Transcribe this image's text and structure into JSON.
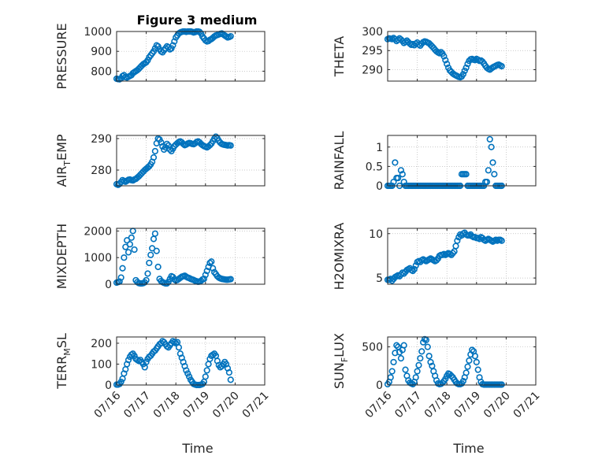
{
  "title": "Figure 3 medium",
  "marker_color": "#0072BD",
  "x_tick_labels": [
    "07/16",
    "07/17",
    "07/18",
    "07/19",
    "07/20",
    "07/21"
  ],
  "x_axis_label": "Time",
  "chart_data": [
    {
      "type": "scatter",
      "ylabel": "PRESSURE",
      "grid": true,
      "xlim": [
        0,
        5
      ],
      "ylim": [
        750,
        1000
      ],
      "yticks": [
        800,
        900,
        1000
      ],
      "x": [
        0.0,
        0.05,
        0.1,
        0.15,
        0.2,
        0.25,
        0.3,
        0.35,
        0.4,
        0.45,
        0.5,
        0.55,
        0.6,
        0.65,
        0.7,
        0.75,
        0.8,
        0.85,
        0.9,
        0.95,
        1.0,
        1.05,
        1.1,
        1.15,
        1.2,
        1.25,
        1.3,
        1.35,
        1.4,
        1.45,
        1.5,
        1.55,
        1.6,
        1.65,
        1.7,
        1.75,
        1.8,
        1.85,
        1.9,
        1.95,
        2.0,
        2.05,
        2.1,
        2.15,
        2.2,
        2.25,
        2.3,
        2.35,
        2.4,
        2.45,
        2.5,
        2.55,
        2.6,
        2.65,
        2.7,
        2.75,
        2.8,
        2.85,
        2.9,
        2.95,
        3.0,
        3.05,
        3.1,
        3.15,
        3.2,
        3.25,
        3.3,
        3.35,
        3.4,
        3.45,
        3.5,
        3.55,
        3.6,
        3.65,
        3.7,
        3.75,
        3.8,
        3.85
      ],
      "y": [
        762,
        760,
        759,
        764,
        775,
        780,
        770,
        768,
        772,
        776,
        780,
        790,
        795,
        800,
        805,
        812,
        820,
        828,
        835,
        840,
        845,
        855,
        870,
        880,
        890,
        900,
        915,
        930,
        925,
        910,
        900,
        895,
        905,
        915,
        925,
        920,
        910,
        915,
        930,
        950,
        970,
        980,
        990,
        995,
        998,
        1000,
        1000,
        998,
        1000,
        1000,
        1000,
        998,
        995,
        997,
        1000,
        1000,
        998,
        990,
        975,
        965,
        955,
        950,
        952,
        958,
        962,
        968,
        975,
        980,
        982,
        985,
        988,
        990,
        985,
        980,
        975,
        970,
        972,
        976
      ]
    },
    {
      "type": "scatter",
      "ylabel": "THETA",
      "grid": true,
      "xlim": [
        0,
        5
      ],
      "ylim": [
        287,
        300
      ],
      "yticks": [
        290,
        295,
        300
      ],
      "x": [
        0.0,
        0.05,
        0.1,
        0.15,
        0.2,
        0.25,
        0.3,
        0.35,
        0.4,
        0.45,
        0.5,
        0.55,
        0.6,
        0.65,
        0.7,
        0.75,
        0.8,
        0.85,
        0.9,
        0.95,
        1.0,
        1.05,
        1.1,
        1.15,
        1.2,
        1.25,
        1.3,
        1.35,
        1.4,
        1.45,
        1.5,
        1.55,
        1.6,
        1.65,
        1.7,
        1.75,
        1.8,
        1.85,
        1.9,
        1.95,
        2.0,
        2.05,
        2.1,
        2.15,
        2.2,
        2.25,
        2.3,
        2.35,
        2.4,
        2.45,
        2.5,
        2.55,
        2.6,
        2.65,
        2.7,
        2.75,
        2.8,
        2.85,
        2.9,
        2.95,
        3.0,
        3.05,
        3.1,
        3.15,
        3.2,
        3.25,
        3.3,
        3.35,
        3.4,
        3.45,
        3.5,
        3.55,
        3.6,
        3.65,
        3.7,
        3.75,
        3.8,
        3.85
      ],
      "y": [
        298,
        298.2,
        298.1,
        298,
        298.3,
        298,
        297.5,
        297.8,
        298.2,
        297.9,
        297.5,
        297,
        297.3,
        297.6,
        297.2,
        296.8,
        296.5,
        296.7,
        296.4,
        296.8,
        297.1,
        296.6,
        296.3,
        296.8,
        297.2,
        297.4,
        297.3,
        297.1,
        296.9,
        296.5,
        296.1,
        295.7,
        295.2,
        294.8,
        294.5,
        294.3,
        294.6,
        294.2,
        293.5,
        292.5,
        291.5,
        290.5,
        289.8,
        289.4,
        289,
        288.7,
        288.5,
        288.3,
        288.1,
        288,
        288.2,
        288.8,
        289.7,
        290.5,
        291.5,
        292.3,
        292.7,
        292.8,
        292.6,
        292.5,
        292.8,
        292.6,
        292.3,
        292.4,
        292.1,
        291.6,
        291,
        290.5,
        290.2,
        290,
        290.3,
        290.6,
        290.8,
        291,
        291.2,
        291.3,
        291.1,
        290.9
      ]
    },
    {
      "type": "scatter",
      "ylabel": "AIR_TEMP",
      "ylabel_parts": [
        "AIR",
        "T",
        "EMP"
      ],
      "grid": true,
      "xlim": [
        0,
        5
      ],
      "ylim": [
        275,
        291
      ],
      "yticks": [
        280,
        290
      ],
      "x": [
        0.0,
        0.05,
        0.1,
        0.15,
        0.2,
        0.25,
        0.3,
        0.35,
        0.4,
        0.45,
        0.5,
        0.55,
        0.6,
        0.65,
        0.7,
        0.75,
        0.8,
        0.85,
        0.9,
        0.95,
        1.0,
        1.05,
        1.1,
        1.15,
        1.2,
        1.25,
        1.3,
        1.35,
        1.4,
        1.45,
        1.5,
        1.55,
        1.6,
        1.65,
        1.7,
        1.75,
        1.8,
        1.85,
        1.9,
        1.95,
        2.0,
        2.05,
        2.1,
        2.15,
        2.2,
        2.25,
        2.3,
        2.35,
        2.4,
        2.45,
        2.5,
        2.55,
        2.6,
        2.65,
        2.7,
        2.75,
        2.8,
        2.85,
        2.9,
        2.95,
        3.0,
        3.05,
        3.1,
        3.15,
        3.2,
        3.25,
        3.3,
        3.35,
        3.4,
        3.45,
        3.5,
        3.55,
        3.6,
        3.65,
        3.7,
        3.75,
        3.8,
        3.85
      ],
      "y": [
        275.5,
        275.3,
        275.6,
        276.2,
        276.8,
        276.5,
        276.3,
        276.6,
        276.9,
        277.0,
        276.8,
        276.7,
        277.0,
        277.2,
        277.6,
        278.0,
        278.5,
        279.0,
        279.5,
        280.0,
        280.4,
        280.8,
        281.2,
        281.8,
        282.6,
        284,
        286,
        288.5,
        290,
        289.7,
        288.8,
        287.5,
        286.5,
        287.2,
        288.3,
        287.8,
        286.5,
        286,
        286.8,
        287.6,
        288.1,
        288.5,
        288.9,
        289.1,
        288.8,
        288.3,
        287.9,
        288.1,
        288.4,
        288.6,
        288.5,
        288.3,
        288.2,
        288.5,
        288.9,
        289.1,
        288.8,
        288.3,
        287.9,
        287.6,
        287.4,
        287.2,
        287.5,
        287.9,
        288.4,
        289.2,
        290,
        290.6,
        290.1,
        289.3,
        288.7,
        288.3,
        288.1,
        288,
        287.9,
        287.8,
        287.9,
        287.8
      ]
    },
    {
      "type": "scatter",
      "ylabel": "RAINFALL",
      "grid": true,
      "xlim": [
        0,
        5
      ],
      "ylim": [
        0,
        1.3
      ],
      "yticks": [
        0,
        0.5,
        1
      ],
      "x": [
        0.0,
        0.05,
        0.1,
        0.15,
        0.2,
        0.25,
        0.3,
        0.35,
        0.4,
        0.45,
        0.5,
        0.55,
        0.6,
        0.65,
        0.7,
        0.75,
        0.8,
        0.85,
        0.9,
        0.95,
        1.0,
        1.05,
        1.1,
        1.15,
        1.2,
        1.25,
        1.3,
        1.35,
        1.4,
        1.45,
        1.5,
        1.55,
        1.6,
        1.65,
        1.7,
        1.75,
        1.8,
        1.85,
        1.9,
        1.95,
        2.0,
        2.05,
        2.1,
        2.15,
        2.2,
        2.25,
        2.3,
        2.35,
        2.4,
        2.45,
        2.5,
        2.55,
        2.6,
        2.65,
        2.7,
        2.75,
        2.8,
        2.85,
        2.9,
        2.95,
        3.0,
        3.05,
        3.1,
        3.15,
        3.2,
        3.25,
        3.3,
        3.35,
        3.4,
        3.45,
        3.5,
        3.55,
        3.6,
        3.65,
        3.7,
        3.75,
        3.8,
        3.85
      ],
      "y": [
        0,
        0,
        0,
        0,
        0.1,
        0.6,
        0.2,
        0.2,
        0,
        0.4,
        0.3,
        0.1,
        0,
        0,
        0,
        0,
        0,
        0,
        0,
        0,
        0,
        0,
        0,
        0,
        0,
        0,
        0,
        0,
        0,
        0,
        0,
        0,
        0,
        0,
        0,
        0,
        0,
        0,
        0,
        0,
        0,
        0,
        0,
        0,
        0,
        0,
        0,
        0,
        0,
        0,
        0.3,
        0.3,
        0.3,
        0.3,
        0,
        0,
        0,
        0,
        0,
        0,
        0,
        0,
        0,
        0,
        0,
        0,
        0.1,
        0.1,
        0.4,
        1.2,
        1.0,
        0.6,
        0.3,
        0,
        0,
        0,
        0,
        0
      ]
    },
    {
      "type": "scatter",
      "ylabel": "MIXDEPTH",
      "grid": true,
      "xlim": [
        0,
        5
      ],
      "ylim": [
        0,
        2100
      ],
      "yticks": [
        0,
        1000,
        2000
      ],
      "x": [
        0.0,
        0.05,
        0.1,
        0.15,
        0.2,
        0.25,
        0.3,
        0.35,
        0.4,
        0.45,
        0.5,
        0.55,
        0.6,
        0.65,
        0.7,
        0.75,
        0.8,
        0.85,
        0.9,
        0.95,
        1.0,
        1.05,
        1.1,
        1.15,
        1.2,
        1.25,
        1.3,
        1.35,
        1.4,
        1.45,
        1.5,
        1.55,
        1.6,
        1.65,
        1.7,
        1.75,
        1.8,
        1.85,
        1.9,
        1.95,
        2.0,
        2.05,
        2.1,
        2.15,
        2.2,
        2.25,
        2.3,
        2.35,
        2.4,
        2.45,
        2.5,
        2.55,
        2.6,
        2.65,
        2.7,
        2.75,
        2.8,
        2.85,
        2.9,
        2.95,
        3.0,
        3.05,
        3.1,
        3.15,
        3.2,
        3.25,
        3.3,
        3.35,
        3.4,
        3.45,
        3.5,
        3.55,
        3.6,
        3.65,
        3.7,
        3.75,
        3.8,
        3.85
      ],
      "y": [
        60,
        80,
        100,
        250,
        600,
        1000,
        1400,
        1650,
        1200,
        1500,
        1750,
        2000,
        1300,
        150,
        80,
        40,
        30,
        30,
        40,
        70,
        150,
        400,
        800,
        1100,
        1350,
        1700,
        1900,
        1250,
        650,
        200,
        120,
        80,
        50,
        30,
        30,
        90,
        200,
        300,
        270,
        180,
        140,
        160,
        200,
        240,
        280,
        300,
        320,
        280,
        250,
        230,
        200,
        180,
        160,
        130,
        110,
        90,
        100,
        130,
        180,
        200,
        350,
        500,
        650,
        800,
        850,
        600,
        450,
        380,
        300,
        250,
        220,
        200,
        190,
        180,
        170,
        170,
        180,
        190
      ]
    },
    {
      "type": "scatter",
      "ylabel": "H2OMIXRA",
      "grid": true,
      "xlim": [
        0,
        5
      ],
      "ylim": [
        4.3,
        10.6
      ],
      "yticks": [
        5,
        10
      ],
      "x": [
        0.0,
        0.05,
        0.1,
        0.15,
        0.2,
        0.25,
        0.3,
        0.35,
        0.4,
        0.45,
        0.5,
        0.55,
        0.6,
        0.65,
        0.7,
        0.75,
        0.8,
        0.85,
        0.9,
        0.95,
        1.0,
        1.05,
        1.1,
        1.15,
        1.2,
        1.25,
        1.3,
        1.35,
        1.4,
        1.45,
        1.5,
        1.55,
        1.6,
        1.65,
        1.7,
        1.75,
        1.8,
        1.85,
        1.9,
        1.95,
        2.0,
        2.05,
        2.1,
        2.15,
        2.2,
        2.25,
        2.3,
        2.35,
        2.4,
        2.45,
        2.5,
        2.55,
        2.6,
        2.65,
        2.7,
        2.75,
        2.8,
        2.85,
        2.9,
        2.95,
        3.0,
        3.05,
        3.1,
        3.15,
        3.2,
        3.25,
        3.3,
        3.35,
        3.4,
        3.45,
        3.5,
        3.55,
        3.6,
        3.65,
        3.7,
        3.75,
        3.8,
        3.85
      ],
      "y": [
        4.8,
        4.8,
        4.9,
        4.7,
        4.9,
        5.1,
        5.2,
        5.3,
        5.2,
        5.4,
        5.6,
        5.5,
        5.7,
        5.9,
        6.0,
        6.1,
        5.9,
        5.8,
        6.0,
        6.4,
        6.8,
        6.9,
        6.8,
        7.0,
        7.1,
        7.0,
        6.9,
        7.0,
        7.1,
        7.2,
        7.1,
        7.0,
        6.9,
        7.0,
        7.2,
        7.5,
        7.6,
        7.6,
        7.7,
        7.6,
        7.7,
        7.8,
        7.7,
        7.6,
        7.8,
        8.0,
        8.6,
        9.2,
        9.6,
        9.9,
        9.8,
        10.0,
        10.1,
        9.9,
        9.8,
        9.8,
        9.9,
        9.7,
        9.6,
        9.6,
        9.5,
        9.5,
        9.4,
        9.6,
        9.5,
        9.3,
        9.2,
        9.3,
        9.4,
        9.3,
        9.2,
        9.1,
        9.2,
        9.3,
        9.2,
        9.3,
        9.3,
        9.2
      ]
    },
    {
      "type": "scatter",
      "ylabel": "TERR_MSL",
      "ylabel_parts": [
        "TERR",
        "M",
        "SL"
      ],
      "grid": true,
      "xlim": [
        0,
        5
      ],
      "ylim": [
        0,
        230
      ],
      "yticks": [
        0,
        100,
        200
      ],
      "x": [
        0.0,
        0.05,
        0.1,
        0.15,
        0.2,
        0.25,
        0.3,
        0.35,
        0.4,
        0.45,
        0.5,
        0.55,
        0.6,
        0.65,
        0.7,
        0.75,
        0.8,
        0.85,
        0.9,
        0.95,
        1.0,
        1.05,
        1.1,
        1.15,
        1.2,
        1.25,
        1.3,
        1.35,
        1.4,
        1.45,
        1.5,
        1.55,
        1.6,
        1.65,
        1.7,
        1.75,
        1.8,
        1.85,
        1.9,
        1.95,
        2.0,
        2.05,
        2.1,
        2.15,
        2.2,
        2.25,
        2.3,
        2.35,
        2.4,
        2.45,
        2.5,
        2.55,
        2.6,
        2.65,
        2.7,
        2.75,
        2.8,
        2.85,
        2.9,
        2.95,
        3.0,
        3.05,
        3.1,
        3.15,
        3.2,
        3.25,
        3.3,
        3.35,
        3.4,
        3.45,
        3.5,
        3.55,
        3.6,
        3.65,
        3.7,
        3.75,
        3.8,
        3.85
      ],
      "y": [
        2,
        2,
        5,
        15,
        30,
        55,
        75,
        100,
        120,
        135,
        145,
        150,
        140,
        125,
        120,
        115,
        120,
        110,
        100,
        85,
        110,
        125,
        135,
        140,
        150,
        160,
        165,
        175,
        185,
        195,
        200,
        210,
        205,
        195,
        185,
        180,
        190,
        200,
        210,
        205,
        200,
        205,
        180,
        150,
        130,
        110,
        90,
        70,
        55,
        40,
        25,
        15,
        5,
        2,
        0,
        0,
        0,
        2,
        5,
        15,
        40,
        70,
        100,
        125,
        140,
        145,
        150,
        140,
        115,
        95,
        85,
        90,
        100,
        110,
        100,
        80,
        60,
        25
      ]
    },
    {
      "type": "scatter",
      "ylabel": "SUN_FLUX",
      "ylabel_parts": [
        "SUN",
        "F",
        "LUX"
      ],
      "grid": true,
      "xlim": [
        0,
        5
      ],
      "ylim": [
        0,
        630
      ],
      "yticks": [
        0,
        500
      ],
      "x": [
        0.0,
        0.05,
        0.1,
        0.15,
        0.2,
        0.25,
        0.3,
        0.35,
        0.4,
        0.45,
        0.5,
        0.55,
        0.6,
        0.65,
        0.7,
        0.75,
        0.8,
        0.85,
        0.9,
        0.95,
        1.0,
        1.05,
        1.1,
        1.15,
        1.2,
        1.25,
        1.3,
        1.35,
        1.4,
        1.45,
        1.5,
        1.55,
        1.6,
        1.65,
        1.7,
        1.75,
        1.8,
        1.85,
        1.9,
        1.95,
        2.0,
        2.05,
        2.1,
        2.15,
        2.2,
        2.25,
        2.3,
        2.35,
        2.4,
        2.45,
        2.5,
        2.55,
        2.6,
        2.65,
        2.7,
        2.75,
        2.8,
        2.85,
        2.9,
        2.95,
        3.0,
        3.05,
        3.1,
        3.15,
        3.2,
        3.25,
        3.3,
        3.35,
        3.4,
        3.45,
        3.5,
        3.55,
        3.6,
        3.65,
        3.7,
        3.75,
        3.8,
        3.85
      ],
      "y": [
        10,
        40,
        100,
        180,
        300,
        420,
        520,
        500,
        430,
        350,
        460,
        520,
        200,
        120,
        60,
        30,
        20,
        10,
        40,
        100,
        180,
        260,
        350,
        440,
        560,
        600,
        590,
        500,
        380,
        300,
        250,
        180,
        120,
        60,
        20,
        10,
        15,
        30,
        50,
        80,
        120,
        150,
        140,
        120,
        100,
        70,
        40,
        20,
        10,
        10,
        20,
        50,
        100,
        160,
        240,
        320,
        400,
        460,
        440,
        380,
        300,
        200,
        100,
        40,
        10,
        5,
        5,
        5,
        5,
        5,
        5,
        5,
        5,
        5,
        5,
        5,
        5,
        5
      ]
    }
  ]
}
